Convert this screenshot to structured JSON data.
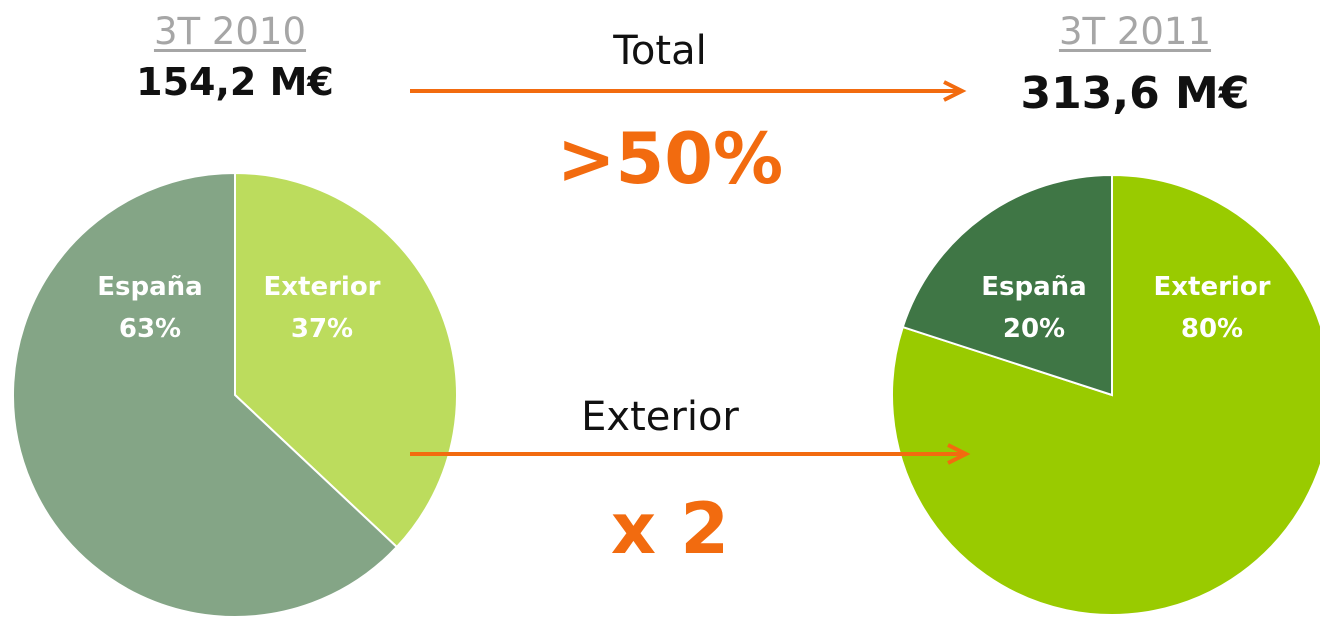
{
  "left": {
    "period": "3T 2010",
    "amount": "154,2 M€"
  },
  "right": {
    "period": "3T 2011",
    "amount": "313,6 M€"
  },
  "middle": {
    "total_label": "Total",
    "total_value": ">50%",
    "exterior_label": "Exterior",
    "exterior_value": "x 2"
  },
  "colors": {
    "arrow": "#f26b0f",
    "highlight_text": "#f26b0f",
    "period_text": "#a6a6a6",
    "slice_label_text": "#ffffff"
  },
  "chart_data": [
    {
      "type": "pie",
      "title": "3T 2010",
      "slices": [
        {
          "name": "España",
          "value": 63,
          "label_value": "63%",
          "color": "#84a586"
        },
        {
          "name": "Exterior",
          "value": 37,
          "label_value": "37%",
          "color": "#bcdc5d"
        }
      ]
    },
    {
      "type": "pie",
      "title": "3T 2011",
      "slices": [
        {
          "name": "España",
          "value": 20,
          "label_value": "20%",
          "color": "#3f7645"
        },
        {
          "name": "Exterior",
          "value": 80,
          "label_value": "80%",
          "color": "#99cb00"
        }
      ]
    }
  ]
}
